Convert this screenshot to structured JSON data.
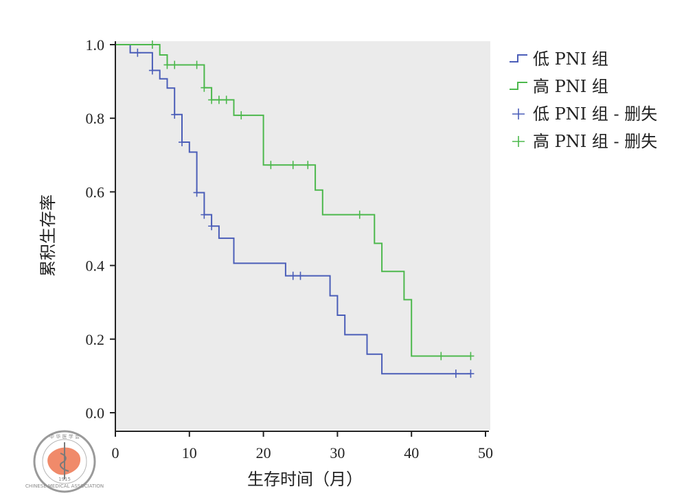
{
  "chart_data": {
    "type": "line",
    "title": "",
    "xlabel": "生存时间（月）",
    "ylabel": "累积生存率",
    "xlim": [
      0,
      50
    ],
    "ylim": [
      0,
      1
    ],
    "xticks": [
      "0",
      "10",
      "20",
      "30",
      "40",
      "50"
    ],
    "yticks": [
      "0.0",
      "0.2",
      "0.4",
      "0.6",
      "0.8",
      "1.0"
    ],
    "background": "#ebebeb",
    "series": [
      {
        "name": "低 PNI 组",
        "color": "#4a5db8",
        "step_points": [
          [
            0,
            1.0
          ],
          [
            2,
            1.0
          ],
          [
            2,
            0.978
          ],
          [
            5,
            0.978
          ],
          [
            5,
            0.93
          ],
          [
            6,
            0.93
          ],
          [
            6,
            0.907
          ],
          [
            7,
            0.907
          ],
          [
            7,
            0.882
          ],
          [
            8,
            0.882
          ],
          [
            8,
            0.81
          ],
          [
            9,
            0.81
          ],
          [
            9,
            0.735
          ],
          [
            10,
            0.735
          ],
          [
            10,
            0.708
          ],
          [
            11,
            0.708
          ],
          [
            11,
            0.598
          ],
          [
            12,
            0.598
          ],
          [
            12,
            0.538
          ],
          [
            13,
            0.538
          ],
          [
            13,
            0.507
          ],
          [
            14,
            0.507
          ],
          [
            14,
            0.474
          ],
          [
            16,
            0.474
          ],
          [
            16,
            0.406
          ],
          [
            23,
            0.406
          ],
          [
            23,
            0.372
          ],
          [
            29,
            0.372
          ],
          [
            29,
            0.318
          ],
          [
            30,
            0.318
          ],
          [
            30,
            0.265
          ],
          [
            31,
            0.265
          ],
          [
            31,
            0.212
          ],
          [
            34,
            0.212
          ],
          [
            34,
            0.159
          ],
          [
            36,
            0.159
          ],
          [
            36,
            0.106
          ],
          [
            48,
            0.106
          ]
        ],
        "censored": [
          [
            3,
            0.978
          ],
          [
            5,
            0.93
          ],
          [
            8,
            0.81
          ],
          [
            9,
            0.735
          ],
          [
            11,
            0.598
          ],
          [
            12,
            0.538
          ],
          [
            13,
            0.507
          ],
          [
            24,
            0.372
          ],
          [
            25,
            0.372
          ],
          [
            46,
            0.106
          ],
          [
            48,
            0.106
          ]
        ]
      },
      {
        "name": "高 PNI 组",
        "color": "#4cb84c",
        "step_points": [
          [
            0,
            1.0
          ],
          [
            6,
            1.0
          ],
          [
            6,
            0.972
          ],
          [
            7,
            0.972
          ],
          [
            7,
            0.945
          ],
          [
            12,
            0.945
          ],
          [
            12,
            0.883
          ],
          [
            13,
            0.883
          ],
          [
            13,
            0.85
          ],
          [
            16,
            0.85
          ],
          [
            16,
            0.808
          ],
          [
            20,
            0.808
          ],
          [
            20,
            0.673
          ],
          [
            27,
            0.673
          ],
          [
            27,
            0.605
          ],
          [
            28,
            0.605
          ],
          [
            28,
            0.538
          ],
          [
            35,
            0.538
          ],
          [
            35,
            0.46
          ],
          [
            36,
            0.46
          ],
          [
            36,
            0.384
          ],
          [
            39,
            0.384
          ],
          [
            39,
            0.307
          ],
          [
            40,
            0.307
          ],
          [
            40,
            0.154
          ],
          [
            48,
            0.154
          ]
        ],
        "censored": [
          [
            5,
            1.0
          ],
          [
            7,
            0.945
          ],
          [
            8,
            0.945
          ],
          [
            11,
            0.945
          ],
          [
            12,
            0.883
          ],
          [
            13,
            0.85
          ],
          [
            14,
            0.85
          ],
          [
            15,
            0.85
          ],
          [
            17,
            0.808
          ],
          [
            21,
            0.673
          ],
          [
            24,
            0.673
          ],
          [
            26,
            0.673
          ],
          [
            33,
            0.538
          ],
          [
            44,
            0.154
          ],
          [
            48,
            0.154
          ]
        ]
      }
    ],
    "legend": {
      "position": "top-right",
      "entries": [
        "低 PNI 组",
        "高 PNI 组",
        "低 PNI 组 - 删失",
        "高 PNI 组 - 删失"
      ]
    }
  },
  "logo": {
    "top_text": "中 华 医 学 会",
    "bottom_text": "CHINESE MEDICAL ASSOCIATION",
    "year": "1915"
  }
}
